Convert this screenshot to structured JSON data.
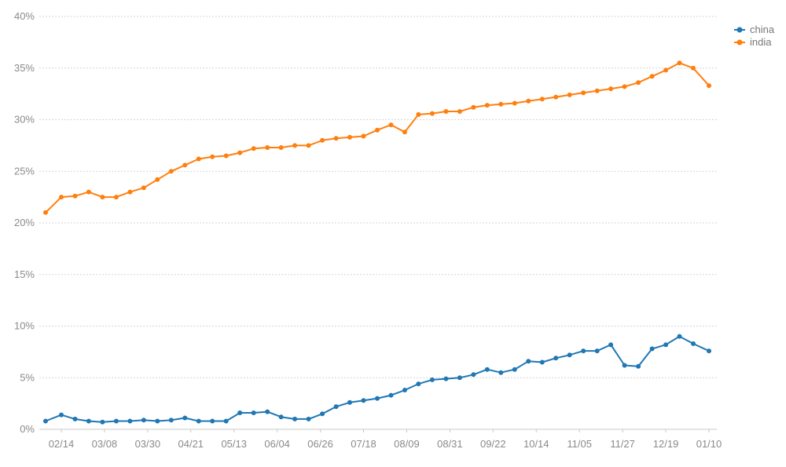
{
  "chart_data": {
    "type": "line",
    "title": "",
    "xlabel": "",
    "ylabel": "",
    "y_unit": "%",
    "ylim": [
      0,
      40
    ],
    "y_ticks": [
      "0%",
      "5%",
      "10%",
      "15%",
      "20%",
      "25%",
      "30%",
      "35%",
      "40%"
    ],
    "x_ticks": [
      "02/14",
      "03/08",
      "03/30",
      "04/21",
      "05/13",
      "06/04",
      "06/26",
      "07/18",
      "08/09",
      "08/31",
      "09/22",
      "10/14",
      "11/05",
      "11/27",
      "12/19",
      "01/10"
    ],
    "x_range_days": [
      -8,
      330
    ],
    "grid": true,
    "legend_position": "top-right",
    "markers": true,
    "series": [
      {
        "name": "china",
        "color": "#1f77b4",
        "x": [
          -8,
          0,
          7,
          14,
          21,
          28,
          35,
          42,
          49,
          56,
          63,
          70,
          77,
          84,
          91,
          98,
          105,
          112,
          119,
          126,
          133,
          140,
          147,
          154,
          161,
          168,
          175,
          182,
          189,
          196,
          203,
          210,
          217,
          224,
          231,
          238,
          245,
          252,
          259,
          266,
          273,
          280,
          287,
          294,
          301,
          308,
          315,
          322,
          330
        ],
        "y": [
          0.8,
          1.4,
          1.0,
          0.8,
          0.7,
          0.8,
          0.8,
          0.9,
          0.8,
          0.9,
          1.1,
          0.8,
          0.8,
          0.8,
          1.6,
          1.6,
          1.7,
          1.2,
          1.0,
          1.0,
          1.5,
          2.2,
          2.6,
          2.8,
          3.0,
          3.3,
          3.8,
          4.4,
          4.8,
          4.9,
          5.0,
          5.3,
          5.8,
          5.5,
          5.8,
          6.6,
          6.5,
          6.9,
          7.2,
          7.6,
          7.6,
          8.2,
          6.2,
          6.1,
          7.8,
          8.2,
          9.0,
          8.3,
          7.6
        ]
      },
      {
        "name": "india",
        "color": "#ff7f0e",
        "x": [
          -8,
          0,
          7,
          14,
          21,
          28,
          35,
          42,
          49,
          56,
          63,
          70,
          77,
          84,
          91,
          98,
          105,
          112,
          119,
          126,
          133,
          140,
          147,
          154,
          161,
          168,
          175,
          182,
          189,
          196,
          203,
          210,
          217,
          224,
          231,
          238,
          245,
          252,
          259,
          266,
          273,
          280,
          287,
          294,
          301,
          308,
          315,
          322,
          330
        ],
        "y": [
          21.0,
          22.5,
          22.6,
          23.0,
          22.5,
          22.5,
          23.0,
          23.4,
          24.2,
          25.0,
          25.6,
          26.2,
          26.4,
          26.5,
          26.8,
          27.2,
          27.3,
          27.3,
          27.5,
          27.5,
          28.0,
          28.2,
          28.3,
          28.4,
          29.0,
          29.5,
          28.8,
          30.5,
          30.6,
          30.8,
          30.8,
          31.2,
          31.4,
          31.5,
          31.6,
          31.8,
          32.0,
          32.2,
          32.4,
          32.6,
          32.8,
          33.0,
          33.2,
          33.6,
          34.2,
          34.8,
          35.5,
          35.0,
          33.3
        ]
      }
    ]
  }
}
